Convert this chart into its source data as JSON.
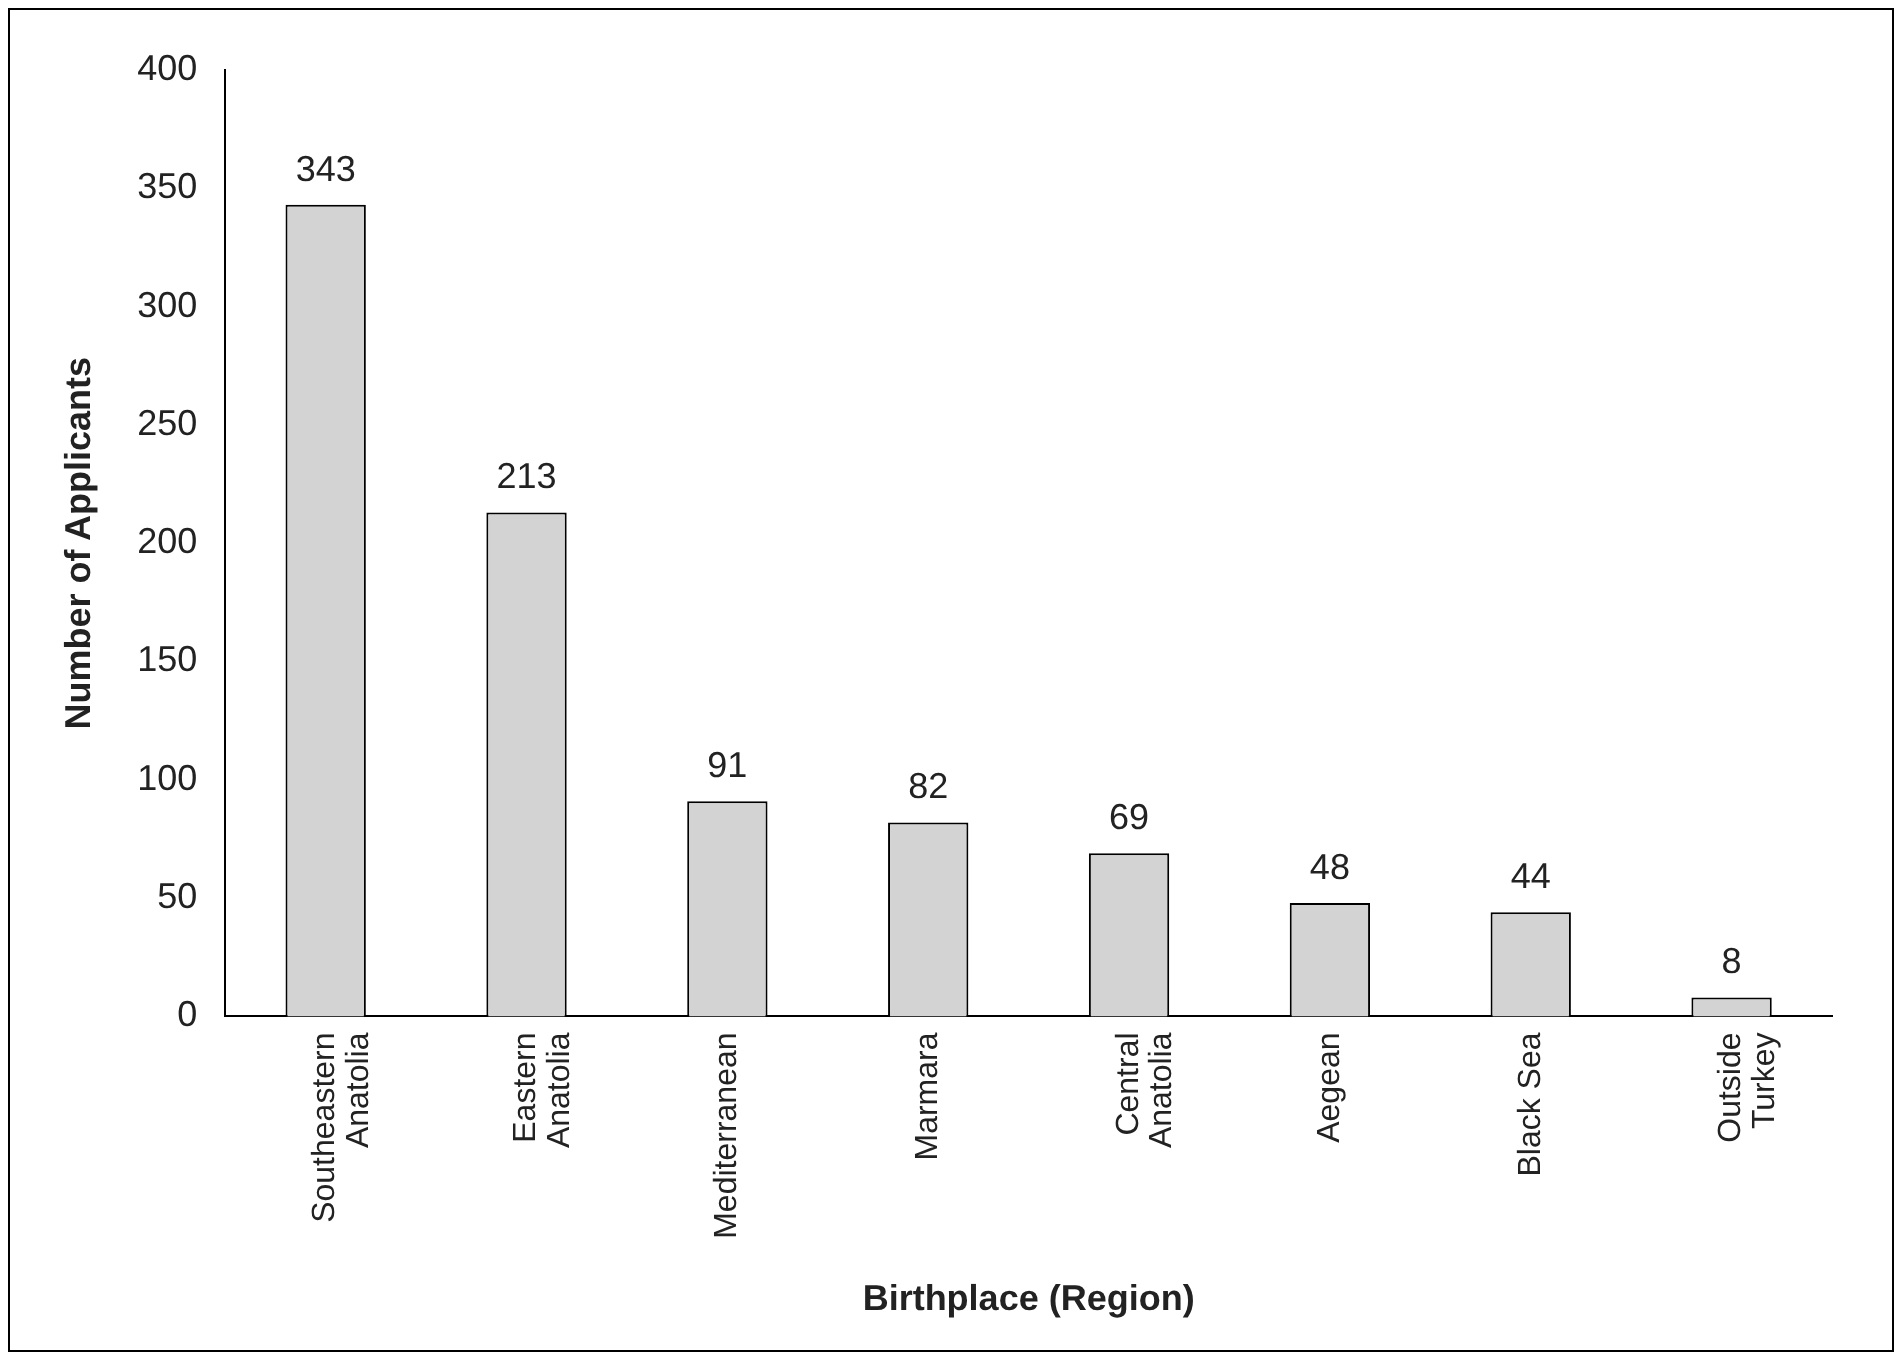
{
  "chart_data": {
    "type": "bar",
    "xlabel": "Birthplace (Region)",
    "ylabel": "Number of Applicants",
    "categories": [
      "Southeastern\nAnatolia",
      "Eastern\nAnatolia",
      "Mediterranean",
      "Marmara",
      "Central\nAnatolia",
      "Aegean",
      "Black Sea",
      "Outside\nTurkey"
    ],
    "values": [
      343,
      213,
      91,
      82,
      69,
      48,
      44,
      8
    ],
    "color": "#d3d3d3",
    "ylim": [
      0,
      400
    ],
    "yticks": [
      0,
      50,
      100,
      150,
      200,
      250,
      300,
      350,
      400
    ],
    "grid": false,
    "legend": false,
    "data_labels": true
  }
}
